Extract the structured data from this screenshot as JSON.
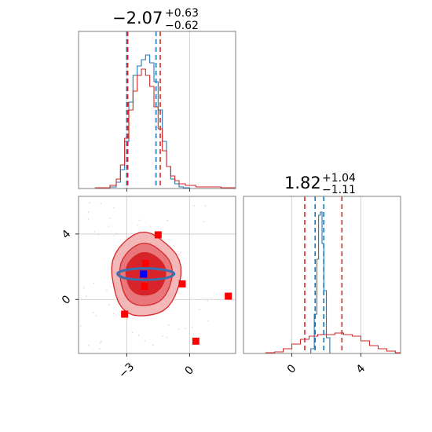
{
  "colors": {
    "blue": "#1f77b4",
    "red": "#d62728",
    "marker_red": "#ff0000",
    "marker_blue": "#0000ff",
    "contour_fill_light": "#f3b7b8",
    "contour_fill_mid": "#e8767a",
    "contour_fill_dark": "#d8232a",
    "blue_contour": "#3a6fb0"
  },
  "chart_data": [
    {
      "panel": "top-left",
      "type": "line",
      "title": {
        "main": "−2.07",
        "sup": "+0.63",
        "sub": "−0.62"
      },
      "xlim": [
        -5.3,
        2.2
      ],
      "grid": true,
      "series": [
        {
          "color": "#1f77b4",
          "x": [
            -5.3,
            -3.8,
            -3.5,
            -3.3,
            -3.1,
            -2.9,
            -2.7,
            -2.5,
            -2.3,
            -2.1,
            -1.9,
            -1.7,
            -1.5,
            -1.3,
            -1.1,
            -0.9,
            -0.7,
            -0.5,
            -0.3,
            0.0,
            0.5,
            2.2
          ],
          "y": [
            0,
            0.01,
            0.04,
            0.12,
            0.3,
            0.55,
            0.72,
            0.78,
            0.82,
            0.85,
            0.8,
            0.68,
            0.5,
            0.3,
            0.14,
            0.06,
            0.03,
            0.01,
            0.005,
            0,
            0,
            0
          ]
        },
        {
          "color": "#d62728",
          "x": [
            -5.3,
            -4.5,
            -3.8,
            -3.5,
            -3.3,
            -3.1,
            -2.9,
            -2.7,
            -2.5,
            -2.3,
            -2.1,
            -1.9,
            -1.7,
            -1.5,
            -1.3,
            -1.1,
            -0.9,
            -0.7,
            -0.5,
            -0.2,
            0.3,
            0.8,
            1.5,
            2.2
          ],
          "y": [
            0,
            0.005,
            0.02,
            0.06,
            0.15,
            0.32,
            0.5,
            0.62,
            0.72,
            0.76,
            0.72,
            0.65,
            0.52,
            0.38,
            0.24,
            0.14,
            0.08,
            0.05,
            0.03,
            0.02,
            0.01,
            0.01,
            0.005,
            0
          ]
        }
      ],
      "quantiles": [
        {
          "color": "#1f77b4",
          "values": [
            -3.0,
            -1.6
          ]
        },
        {
          "color": "#d62728",
          "values": [
            -2.95,
            -1.4
          ]
        }
      ]
    },
    {
      "panel": "bottom-right",
      "type": "line",
      "title": {
        "main": "1.82",
        "sup": "+1.04",
        "sub": "−1.11"
      },
      "xlim": [
        -2.8,
        6.3
      ],
      "xticks": [
        0,
        4
      ],
      "xtick_labels": [
        "0",
        "4"
      ],
      "grid": true,
      "series": [
        {
          "color": "#1f77b4",
          "x": [
            -2.8,
            0.8,
            1.1,
            1.3,
            1.45,
            1.55,
            1.65,
            1.75,
            1.85,
            2.0,
            2.2,
            6.3
          ],
          "y": [
            0,
            0,
            0.03,
            0.25,
            0.6,
            0.88,
            0.9,
            0.7,
            0.4,
            0.1,
            0,
            0
          ]
        },
        {
          "color": "#d62728",
          "x": [
            -2.8,
            -1.5,
            -1.0,
            -0.5,
            0.0,
            0.5,
            1.0,
            1.5,
            2.0,
            2.5,
            3.0,
            3.5,
            4.0,
            4.5,
            5.0,
            5.5,
            6.0,
            6.3
          ],
          "y": [
            0,
            0.005,
            0.01,
            0.03,
            0.06,
            0.09,
            0.11,
            0.12,
            0.12,
            0.13,
            0.12,
            0.11,
            0.08,
            0.05,
            0.03,
            0.015,
            0.005,
            0
          ]
        }
      ],
      "quantiles": [
        {
          "color": "#1f77b4",
          "values": [
            1.35,
            1.85
          ]
        },
        {
          "color": "#d62728",
          "values": [
            0.75,
            2.9
          ]
        }
      ]
    },
    {
      "panel": "bottom-left",
      "type": "scatter",
      "xlim": [
        -5.3,
        2.2
      ],
      "ylim": [
        -3.3,
        6.3
      ],
      "xticks": [
        -3,
        0
      ],
      "xtick_labels": [
        "−3",
        "0"
      ],
      "yticks": [
        0,
        4
      ],
      "ytick_labels": [
        "0",
        "4"
      ],
      "grid": true,
      "contours": [
        {
          "level": "outer",
          "color": "#f3b7b8",
          "cx": -2.1,
          "cy": 1.5,
          "rx": 1.65,
          "ry": 2.55
        },
        {
          "level": "mid",
          "color": "#e8767a",
          "cx": -2.1,
          "cy": 1.5,
          "rx": 1.25,
          "ry": 1.9
        },
        {
          "level": "inner",
          "color": "#d8232a",
          "cx": -2.1,
          "cy": 1.55,
          "rx": 0.95,
          "ry": 1.3
        }
      ],
      "blue_contour": {
        "cx": -2.1,
        "cy": 1.55,
        "rx": 1.35,
        "ry": 0.35
      },
      "points_red": [
        {
          "x": -1.5,
          "y": 3.95
        },
        {
          "x": -2.1,
          "y": 2.2
        },
        {
          "x": -2.15,
          "y": 0.8
        },
        {
          "x": -0.35,
          "y": 0.95
        },
        {
          "x": 1.85,
          "y": 0.2
        },
        {
          "x": -3.1,
          "y": -0.9
        },
        {
          "x": 0.3,
          "y": -2.55
        }
      ],
      "points_blue": [
        {
          "x": -2.2,
          "y": 1.55
        }
      ]
    }
  ]
}
